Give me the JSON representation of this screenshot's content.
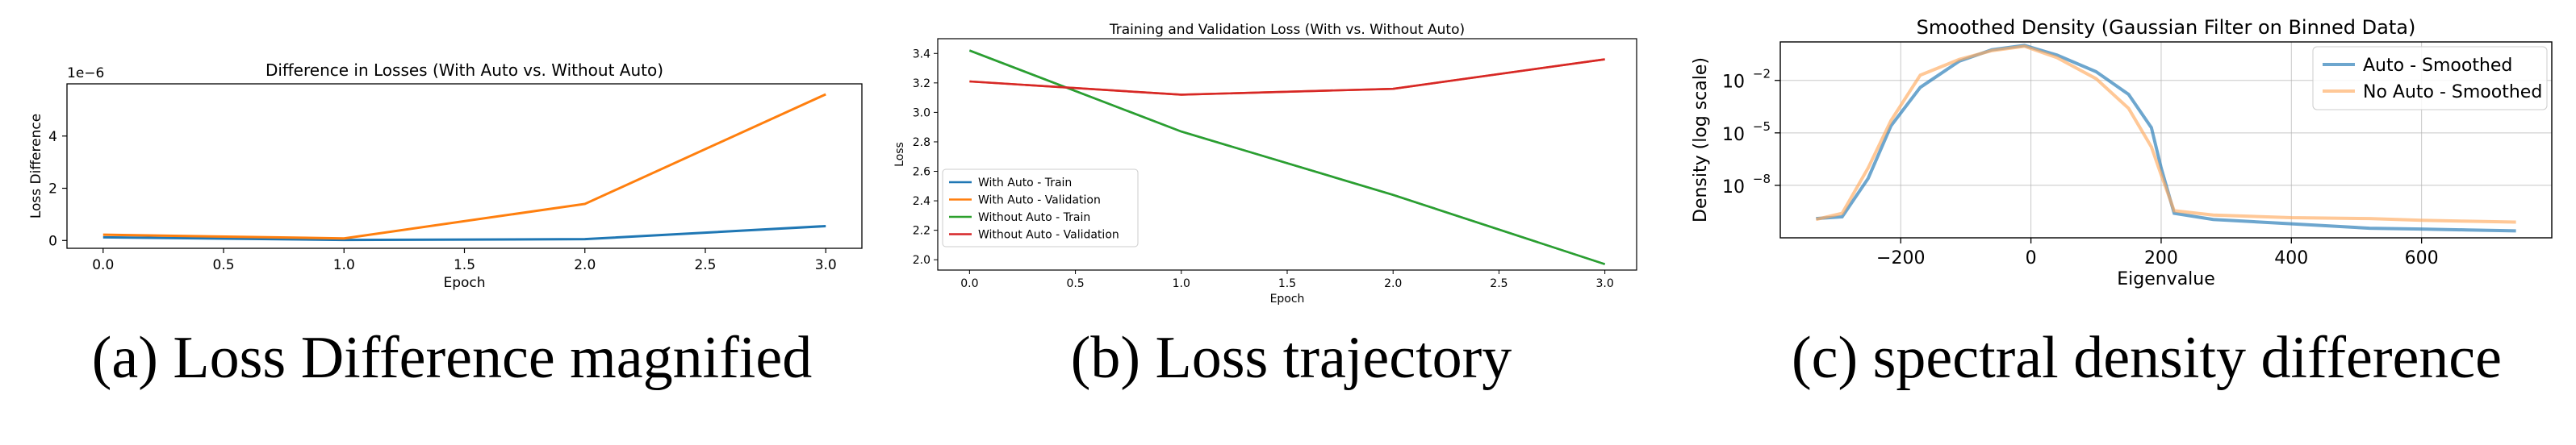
{
  "captions": {
    "a": "(a) Loss Difference magnified",
    "b": "(b) Loss trajectory",
    "c": "(c) spectral density difference"
  },
  "chart_data": [
    {
      "type": "line",
      "title": "Difference in Losses (With Auto vs. Without Auto)",
      "xlabel": "Epoch",
      "ylabel": "Loss Difference",
      "y_offset_label": "1e−6",
      "x": [
        0,
        1,
        2,
        3
      ],
      "xlim": [
        -0.15,
        3.15
      ],
      "ylim": [
        -0.3,
        6.0
      ],
      "xticks": [
        0.0,
        0.5,
        1.0,
        1.5,
        2.0,
        2.5,
        3.0
      ],
      "xtick_labels": [
        "0.0",
        "0.5",
        "1.0",
        "1.5",
        "2.0",
        "2.5",
        "3.0"
      ],
      "yticks": [
        0,
        2,
        4
      ],
      "ytick_labels": [
        "0",
        "2",
        "4"
      ],
      "grid": false,
      "series": [
        {
          "values": [
            0.12,
            0.02,
            0.05,
            0.55
          ],
          "color": "#1f77b4"
        },
        {
          "values": [
            0.22,
            0.08,
            1.4,
            5.6
          ],
          "color": "#ff7f0e"
        }
      ]
    },
    {
      "type": "line",
      "title": "Training and Validation Loss (With vs. Without Auto)",
      "xlabel": "Epoch",
      "ylabel": "Loss",
      "x": [
        0,
        1,
        2,
        3
      ],
      "xlim": [
        -0.15,
        3.15
      ],
      "ylim": [
        1.93,
        3.5
      ],
      "xticks": [
        0.0,
        0.5,
        1.0,
        1.5,
        2.0,
        2.5,
        3.0
      ],
      "xtick_labels": [
        "0.0",
        "0.5",
        "1.0",
        "1.5",
        "2.0",
        "2.5",
        "3.0"
      ],
      "yticks": [
        2.0,
        2.2,
        2.4,
        2.6,
        2.8,
        3.0,
        3.2,
        3.4
      ],
      "ytick_labels": [
        "2.0",
        "2.2",
        "2.4",
        "2.6",
        "2.8",
        "3.0",
        "3.2",
        "3.4"
      ],
      "grid": false,
      "legend_position": "lower-left",
      "series": [
        {
          "name": "With Auto - Train",
          "values": [
            3.42,
            2.87,
            2.44,
            1.97
          ],
          "color": "#1f77b4"
        },
        {
          "name": "With Auto - Validation",
          "values": [
            3.21,
            3.12,
            3.16,
            3.36
          ],
          "color": "#ff7f0e"
        },
        {
          "name": "Without Auto - Train",
          "values": [
            3.42,
            2.87,
            2.44,
            1.97
          ],
          "color": "#2ca02c"
        },
        {
          "name": "Without Auto - Validation",
          "values": [
            3.21,
            3.12,
            3.16,
            3.36
          ],
          "color": "#d62728"
        }
      ]
    },
    {
      "type": "line",
      "title": "Smoothed Density (Gaussian Filter on Binned Data)",
      "xlabel": "Eigenvalue",
      "ylabel": "Density (log scale)",
      "y_scale": "log",
      "xlim": [
        -385,
        800
      ],
      "ylim_log10": [
        -11.0,
        0.2
      ],
      "xticks": [
        -200,
        0,
        200,
        400,
        600
      ],
      "xtick_labels": [
        "−200",
        "0",
        "200",
        "400",
        "600"
      ],
      "yticks_log10": [
        -8,
        -5,
        -2
      ],
      "ytick_labels": [
        "10",
        "10",
        "10"
      ],
      "ytick_exponents": [
        "−8",
        "−5",
        "−2"
      ],
      "grid": true,
      "legend_position": "top-right",
      "series": [
        {
          "name": "Auto - Smoothed",
          "color": "#1f77b4",
          "x": [
            -330,
            -290,
            -250,
            -215,
            -170,
            -110,
            -60,
            -10,
            40,
            100,
            150,
            185,
            200,
            220,
            280,
            400,
            520,
            600,
            670,
            745
          ],
          "y_log10": [
            -9.9,
            -9.8,
            -7.6,
            -4.6,
            -2.4,
            -0.9,
            -0.25,
            0.0,
            -0.55,
            -1.5,
            -2.8,
            -4.7,
            -7.0,
            -9.6,
            -9.95,
            -10.2,
            -10.45,
            -10.5,
            -10.55,
            -10.6
          ]
        },
        {
          "name": "No Auto - Smoothed",
          "color": "#ffaa60",
          "x": [
            -330,
            -290,
            -250,
            -215,
            -170,
            -110,
            -60,
            -10,
            40,
            100,
            150,
            185,
            200,
            220,
            280,
            400,
            520,
            600,
            670,
            745
          ],
          "y_log10": [
            -9.95,
            -9.6,
            -7.0,
            -4.3,
            -1.7,
            -0.8,
            -0.3,
            -0.05,
            -0.7,
            -1.9,
            -3.6,
            -5.8,
            -7.4,
            -9.45,
            -9.7,
            -9.85,
            -9.9,
            -10.0,
            -10.05,
            -10.1
          ]
        }
      ]
    }
  ]
}
